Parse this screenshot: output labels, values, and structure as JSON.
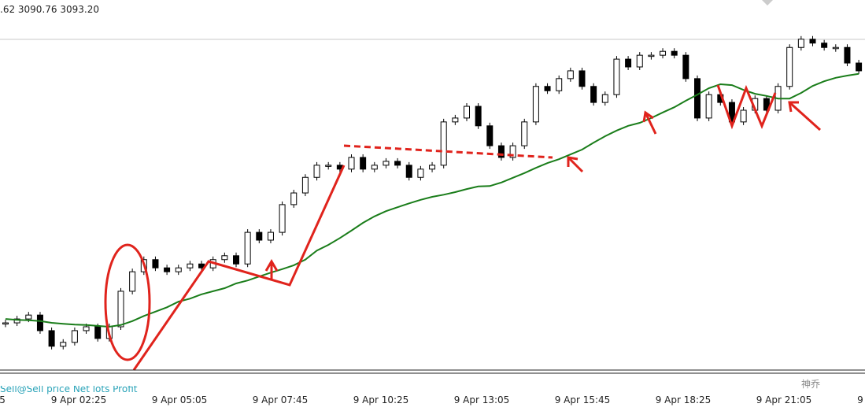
{
  "header": {
    "quote": ".62 3090.76 3093.20"
  },
  "chart_data": {
    "type": "candlestick",
    "close": [
      3030.9,
      3031.8,
      3032.7,
      3029.1,
      3025.5,
      3026.4,
      3029.1,
      3030.0,
      3027.3,
      3030.0,
      3038.2,
      3042.7,
      3045.5,
      3043.6,
      3042.7,
      3043.6,
      3044.5,
      3043.6,
      3045.5,
      3046.4,
      3044.5,
      3051.8,
      3050.0,
      3051.8,
      3058.2,
      3060.9,
      3064.5,
      3067.3,
      3067.3,
      3066.4,
      3069.1,
      3066.4,
      3067.3,
      3068.2,
      3067.3,
      3064.5,
      3066.4,
      3067.3,
      3077.3,
      3078.2,
      3080.9,
      3076.4,
      3071.8,
      3069.1,
      3071.8,
      3077.3,
      3085.5,
      3084.5,
      3087.3,
      3089.1,
      3085.5,
      3081.8,
      3083.6,
      3091.8,
      3090.0,
      3092.7,
      3092.7,
      3093.6,
      3092.7,
      3087.3,
      3078.2,
      3083.6,
      3081.8,
      3077.3,
      3080.0,
      3082.7,
      3080.0,
      3085.5,
      3094.5,
      3096.4,
      3095.5,
      3094.5,
      3094.5,
      3090.9,
      3089.1
    ],
    "moving_average": {
      "color": "#1a7d1a",
      "values": [
        3031.8,
        3031.6,
        3031.5,
        3031.3,
        3030.9,
        3030.7,
        3030.5,
        3030.4,
        3030.2,
        3030.0,
        3030.4,
        3031.3,
        3032.5,
        3033.5,
        3034.5,
        3035.8,
        3036.5,
        3037.5,
        3038.2,
        3038.9,
        3040.0,
        3040.7,
        3041.6,
        3042.5,
        3043.3,
        3044.2,
        3045.5,
        3047.6,
        3048.9,
        3050.5,
        3052.2,
        3054.0,
        3055.5,
        3056.7,
        3057.6,
        3058.5,
        3059.3,
        3060.0,
        3060.5,
        3061.1,
        3061.8,
        3062.4,
        3062.5,
        3063.3,
        3064.4,
        3065.5,
        3066.7,
        3067.8,
        3068.7,
        3069.8,
        3070.9,
        3072.5,
        3074.0,
        3075.3,
        3076.4,
        3077.1,
        3078.2,
        3079.5,
        3080.7,
        3082.2,
        3083.6,
        3085.1,
        3086.0,
        3085.8,
        3084.7,
        3083.8,
        3083.3,
        3082.7,
        3082.7,
        3084.0,
        3085.6,
        3086.7,
        3087.5,
        3088.0,
        3088.4
      ]
    },
    "ylim": [
      3020,
      3100
    ],
    "x_labels": [
      "5",
      "9 Apr 02:25",
      "9 Apr 05:05",
      "9 Apr 07:45",
      "9 Apr 10:25",
      "9 Apr 13:05",
      "9 Apr 15:45",
      "9 Apr 18:25",
      "9 Apr 21:05",
      "9"
    ]
  },
  "footer": {
    "trade_info": "Sell@Sell price Net lots Profit",
    "watermark": "神乔"
  }
}
